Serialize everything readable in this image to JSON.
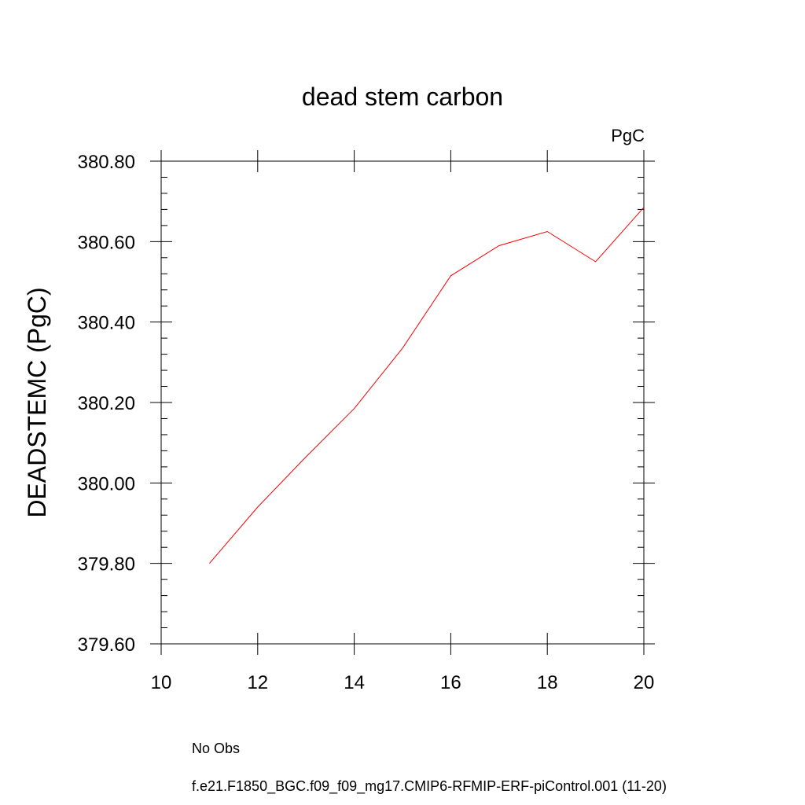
{
  "chart_data": {
    "type": "line",
    "title": "dead stem carbon",
    "units_label": "PgC",
    "xlabel": "",
    "ylabel": "DEADSTEMC  (PgC)",
    "xlim": [
      10,
      20
    ],
    "ylim": [
      379.6,
      380.8
    ],
    "x_ticks": [
      "10",
      "12",
      "14",
      "16",
      "18",
      "20"
    ],
    "y_ticks": [
      "379.60",
      "379.80",
      "380.00",
      "380.20",
      "380.40",
      "380.60",
      "380.80"
    ],
    "grid": false,
    "legend_position": "bottom",
    "series": [
      {
        "name": "f.e21.F1850_BGC.f09_f09_mg17.CMIP6-RFMIP-ERF-piControl.001 (11-20)",
        "color": "#ff0000",
        "x": [
          11,
          12,
          13,
          14,
          15,
          16,
          17,
          18,
          19,
          20
        ],
        "values": [
          379.8,
          379.94,
          380.065,
          380.185,
          380.335,
          380.515,
          380.59,
          380.625,
          380.55,
          380.685
        ]
      }
    ],
    "legend": [
      {
        "label": "No Obs",
        "style": "dashed",
        "color": "#7b68c8"
      },
      {
        "label": "f.e21.F1850_BGC.f09_f09_mg17.CMIP6-RFMIP-ERF-piControl.001 (11-20)",
        "style": "solid",
        "color": "#ff0000"
      }
    ]
  }
}
